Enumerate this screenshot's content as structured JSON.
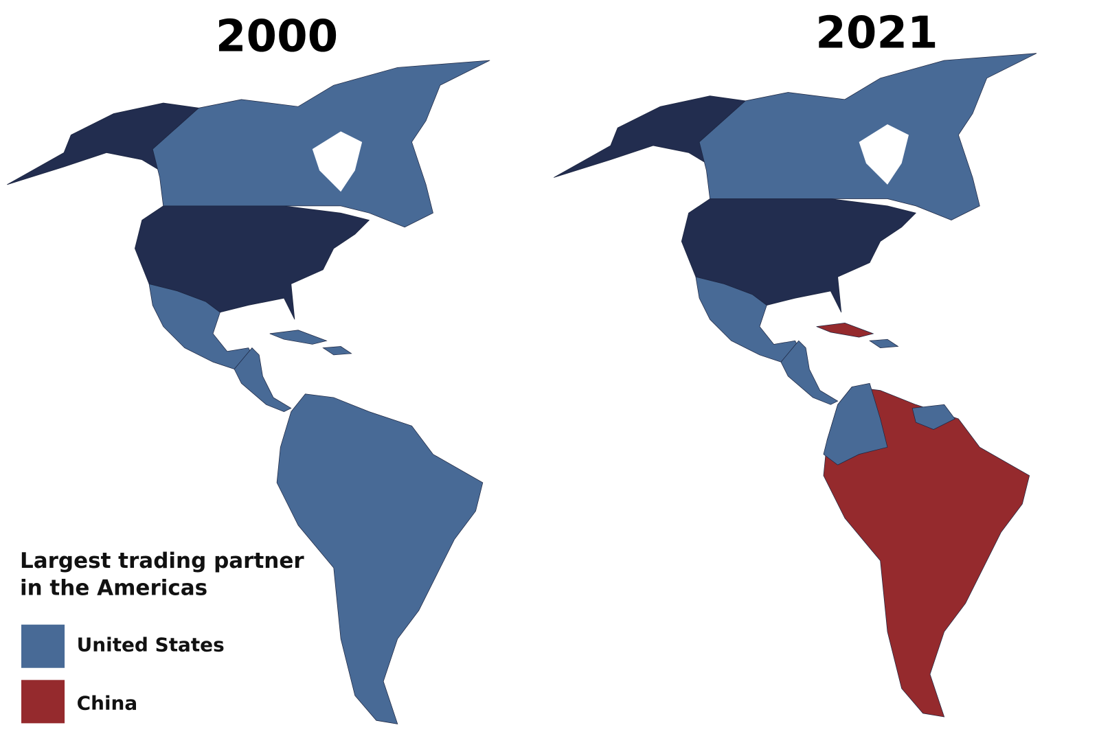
{
  "maps": [
    {
      "title": "2000"
    },
    {
      "title": "2021"
    }
  ],
  "legend": {
    "title_lines": [
      "Largest trading partner",
      "in the Americas"
    ],
    "items": [
      {
        "label": "United States",
        "color": "#486a96"
      },
      {
        "label": "China",
        "color": "#952a2d"
      }
    ]
  }
}
